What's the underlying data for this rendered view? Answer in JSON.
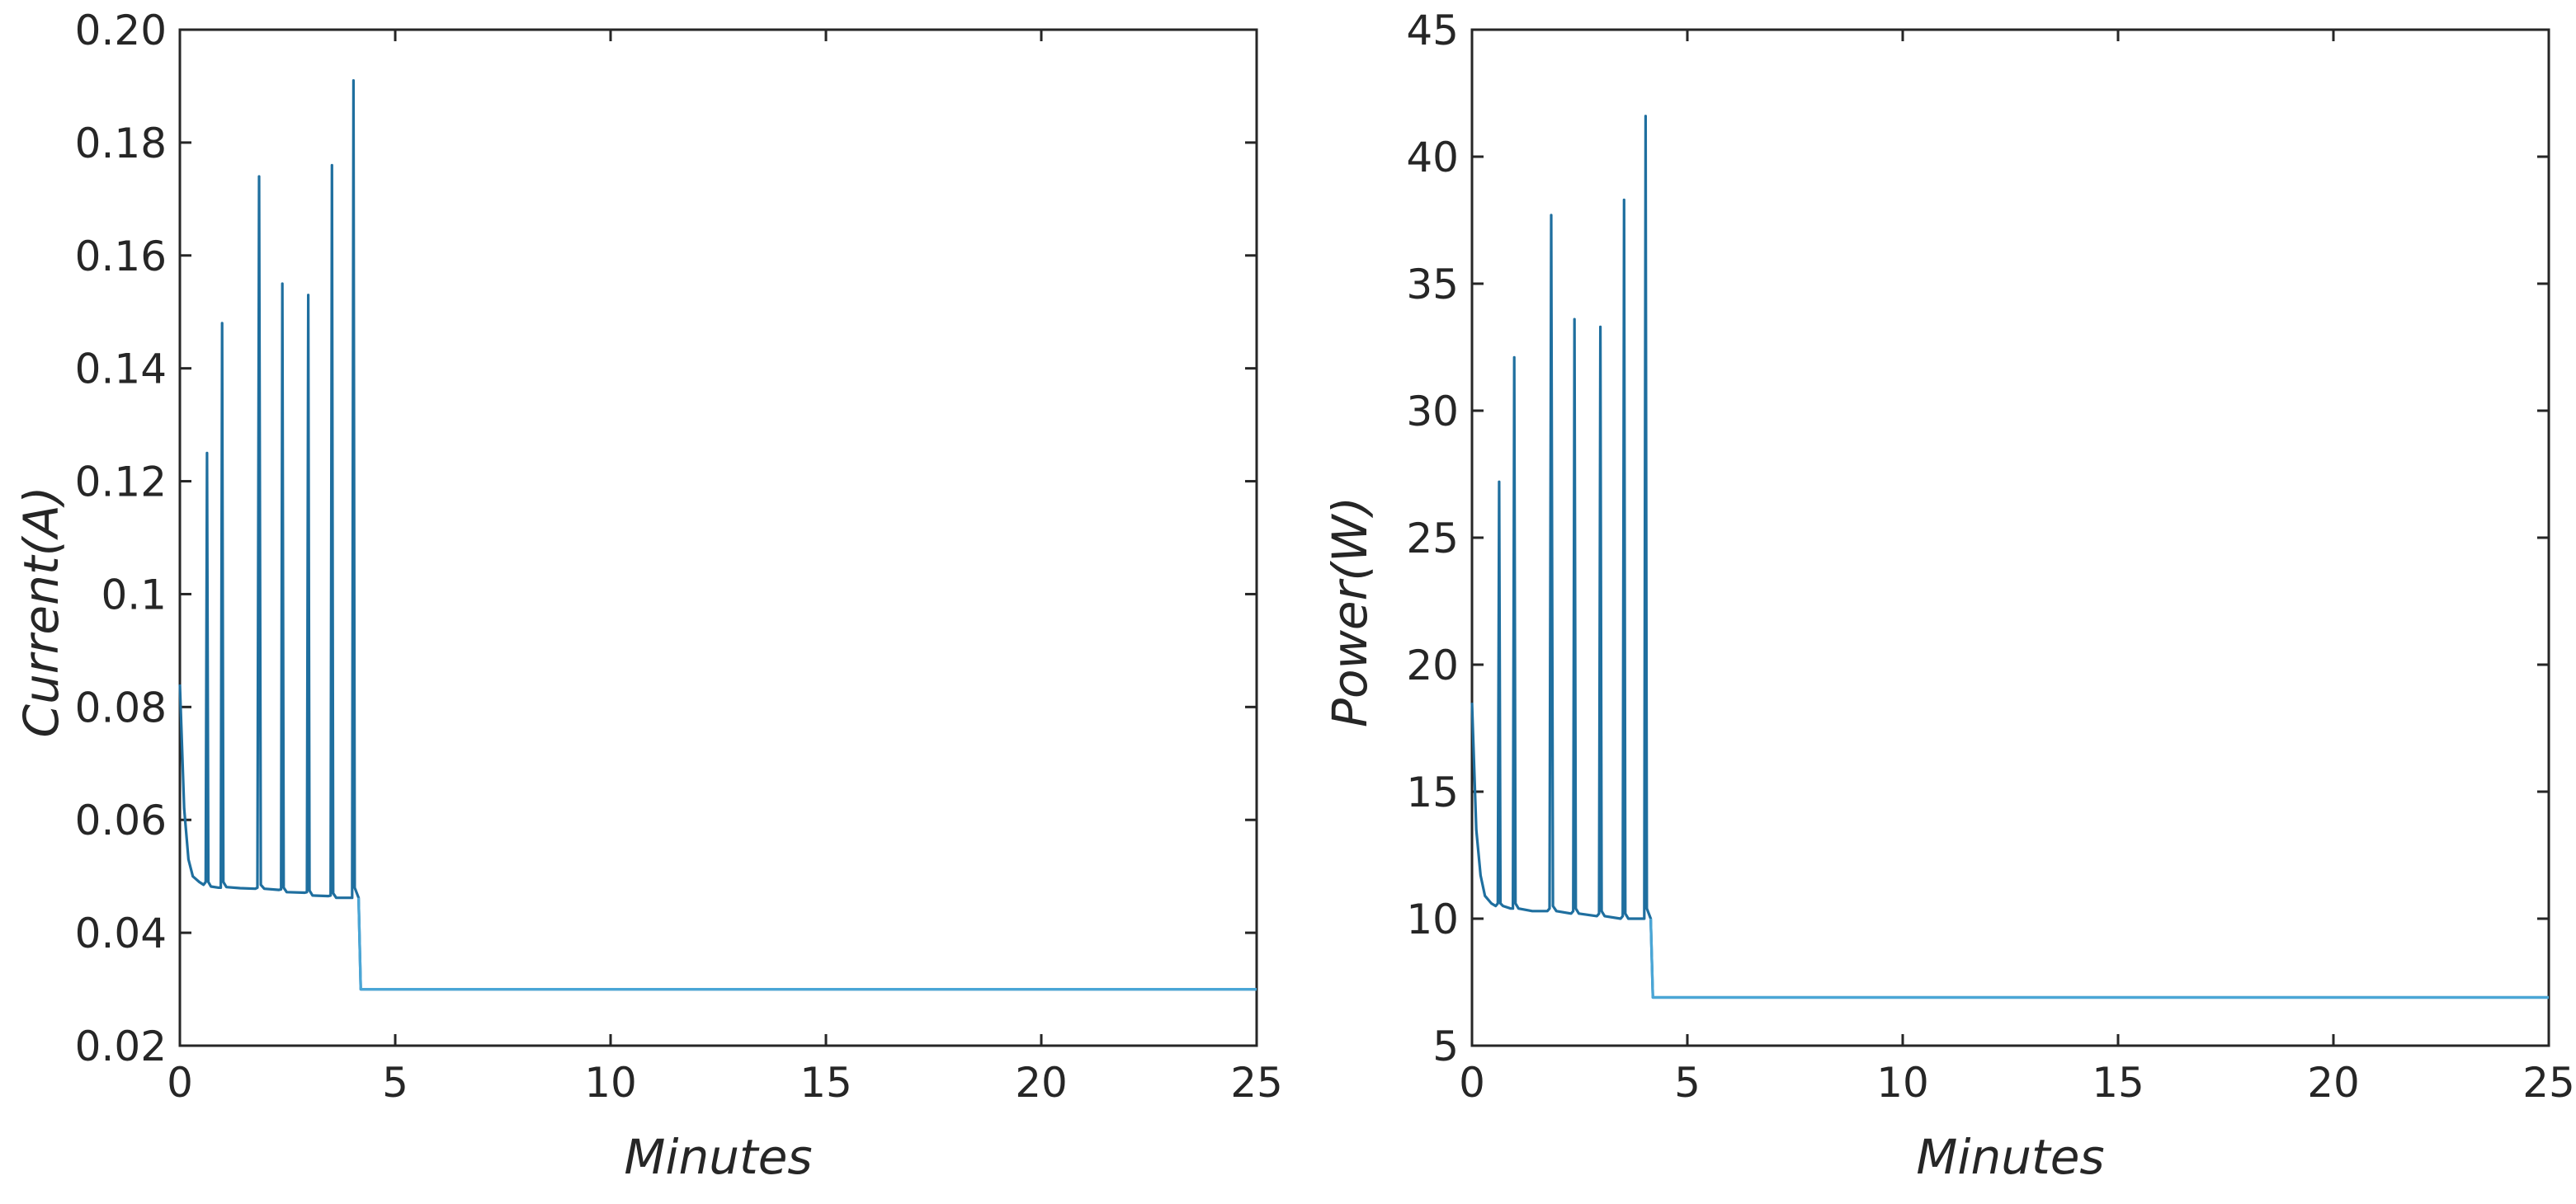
{
  "chart_data": [
    {
      "type": "line",
      "xlabel": "Minutes",
      "ylabel": "Current(A)",
      "xlim": [
        0,
        25
      ],
      "ylim": [
        0.02,
        0.2
      ],
      "xticks": [
        0,
        5,
        10,
        15,
        20,
        25
      ],
      "xtick_labels": [
        "0",
        "5",
        "10",
        "15",
        "20",
        "25"
      ],
      "yticks": [
        0.02,
        0.04,
        0.06,
        0.08,
        0.1,
        0.12,
        0.14,
        0.16,
        0.18,
        0.2
      ],
      "ytick_labels": [
        "0.02",
        "0.04",
        "0.06",
        "0.08",
        "0.1",
        "0.12",
        "0.14",
        "0.16",
        "0.18",
        "0.20"
      ],
      "grid": false,
      "color": "#1f6f9f",
      "series": [
        {
          "x": [
            0,
            0.1,
            0.2,
            0.3,
            0.45,
            0.55,
            0.6,
            0.63,
            0.66,
            0.72,
            0.9,
            0.95,
            0.98,
            1.01,
            1.08,
            1.4,
            1.75,
            1.8,
            1.84,
            1.88,
            1.96,
            2.3,
            2.35,
            2.38,
            2.41,
            2.48,
            2.9,
            2.95,
            2.98,
            3.01,
            3.08,
            3.45,
            3.5,
            3.53,
            3.56,
            3.63,
            3.95,
            4.0,
            4.03,
            4.06,
            4.15,
            4.2,
            8,
            12,
            16,
            20,
            25
          ],
          "y": [
            0.084,
            0.062,
            0.053,
            0.05,
            0.049,
            0.0485,
            0.049,
            0.125,
            0.049,
            0.0482,
            0.048,
            0.048,
            0.148,
            0.049,
            0.0481,
            0.0479,
            0.0478,
            0.048,
            0.174,
            0.0485,
            0.0478,
            0.0476,
            0.0477,
            0.155,
            0.048,
            0.0472,
            0.0471,
            0.0472,
            0.153,
            0.0475,
            0.0466,
            0.0465,
            0.0466,
            0.176,
            0.047,
            0.0462,
            0.0462,
            0.0462,
            0.191,
            0.048,
            0.0462,
            0.03,
            0.03,
            0.03,
            0.03,
            0.03,
            0.03
          ]
        }
      ]
    },
    {
      "type": "line",
      "xlabel": "Minutes",
      "ylabel": "Power(W)",
      "xlim": [
        0,
        25
      ],
      "ylim": [
        5,
        45
      ],
      "xticks": [
        0,
        5,
        10,
        15,
        20,
        25
      ],
      "xtick_labels": [
        "0",
        "5",
        "10",
        "15",
        "20",
        "25"
      ],
      "yticks": [
        5,
        10,
        15,
        20,
        25,
        30,
        35,
        40,
        45
      ],
      "ytick_labels": [
        "5",
        "10",
        "15",
        "20",
        "25",
        "30",
        "35",
        "40",
        "45"
      ],
      "grid": false,
      "color": "#1f6f9f",
      "series": [
        {
          "x": [
            0,
            0.1,
            0.2,
            0.3,
            0.45,
            0.55,
            0.6,
            0.63,
            0.66,
            0.72,
            0.9,
            0.95,
            0.98,
            1.01,
            1.08,
            1.4,
            1.75,
            1.8,
            1.84,
            1.88,
            1.96,
            2.3,
            2.35,
            2.38,
            2.41,
            2.48,
            2.9,
            2.95,
            2.98,
            3.01,
            3.08,
            3.45,
            3.5,
            3.53,
            3.56,
            3.63,
            3.95,
            4.0,
            4.03,
            4.06,
            4.15,
            4.2,
            8,
            12,
            16,
            20,
            25
          ],
          "y": [
            18.5,
            13.5,
            11.7,
            10.9,
            10.6,
            10.5,
            10.6,
            27.2,
            10.6,
            10.5,
            10.4,
            10.4,
            32.1,
            10.6,
            10.4,
            10.3,
            10.3,
            10.4,
            37.7,
            10.5,
            10.3,
            10.2,
            10.3,
            33.6,
            10.4,
            10.2,
            10.1,
            10.2,
            33.3,
            10.3,
            10.1,
            10.0,
            10.1,
            38.3,
            10.2,
            10.0,
            10.0,
            10.0,
            41.6,
            10.4,
            10.0,
            6.9,
            6.9,
            6.9,
            6.9,
            6.9,
            6.9
          ]
        }
      ]
    }
  ]
}
